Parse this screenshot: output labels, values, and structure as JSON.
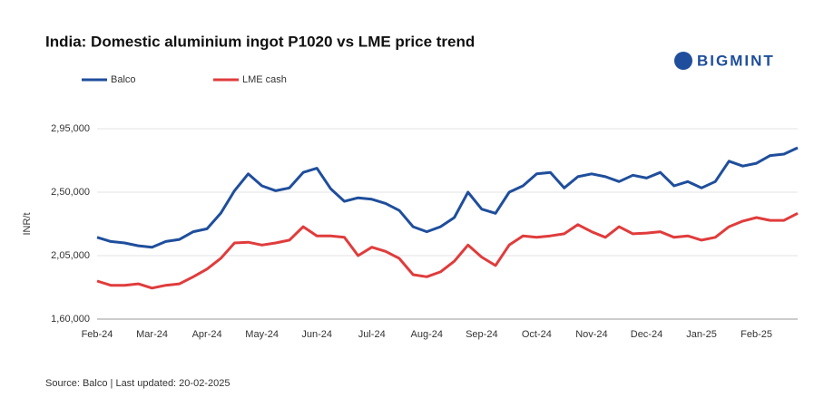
{
  "chart_data": {
    "type": "line",
    "title": "India: Domestic aluminium ingot P1020 vs LME price trend",
    "logo": "BIGMINT",
    "y_label": "INR/t",
    "source": "Source: Balco | Last updated: 20-02-2025",
    "categories": [
      "Feb-24",
      null,
      null,
      null,
      "Mar-24",
      null,
      null,
      null,
      "Apr-24",
      null,
      null,
      null,
      "May-24",
      null,
      null,
      null,
      "Jun-24",
      null,
      null,
      null,
      "Jul-24",
      null,
      null,
      null,
      "Aug-24",
      null,
      null,
      null,
      "Sep-24",
      null,
      null,
      null,
      "Oct-24",
      null,
      null,
      null,
      "Nov-24",
      null,
      null,
      null,
      "Dec-24",
      null,
      null,
      null,
      "Jan-25",
      null,
      null,
      null,
      "Feb-25",
      null,
      null,
      null
    ],
    "series": [
      {
        "name": "Balco",
        "color": "#1f4e9c",
        "values": [
          218000,
          215000,
          214000,
          212000,
          211000,
          215000,
          216500,
          222000,
          224000,
          235000,
          251000,
          263000,
          254500,
          251000,
          253000,
          264000,
          267000,
          252500,
          243500,
          246000,
          245000,
          242000,
          237000,
          225500,
          222000,
          225500,
          232000,
          250000,
          238000,
          235000,
          250000,
          254500,
          263000,
          264000,
          253000,
          261000,
          263000,
          261000,
          257500,
          262000,
          260000,
          264000,
          254500,
          257500,
          253000,
          257500,
          272000,
          268500,
          270500,
          276000,
          277000,
          281500
        ]
      },
      {
        "name": "LME cash",
        "color": "#e03c3c",
        "values": [
          187000,
          184000,
          184000,
          185000,
          182000,
          184000,
          185000,
          190000,
          195500,
          203000,
          214000,
          214500,
          212500,
          214000,
          216000,
          225500,
          219000,
          219000,
          218000,
          205000,
          211000,
          208000,
          203000,
          191500,
          190000,
          193500,
          201000,
          212500,
          204000,
          198000,
          212500,
          219000,
          218000,
          219000,
          220500,
          227000,
          222000,
          218000,
          225500,
          220500,
          221000,
          222000,
          218000,
          219000,
          216000,
          218000,
          225500,
          229500,
          232000,
          230000,
          230000,
          235000
        ]
      }
    ],
    "ylim": [
      160000,
      295000
    ],
    "yticks": [
      {
        "value": 160000,
        "label": "1,60,000"
      },
      {
        "value": 205000,
        "label": "2,05,000"
      },
      {
        "value": 250000,
        "label": "2,50,000"
      },
      {
        "value": 295000,
        "label": "2,95,000"
      }
    ],
    "grid": true
  }
}
